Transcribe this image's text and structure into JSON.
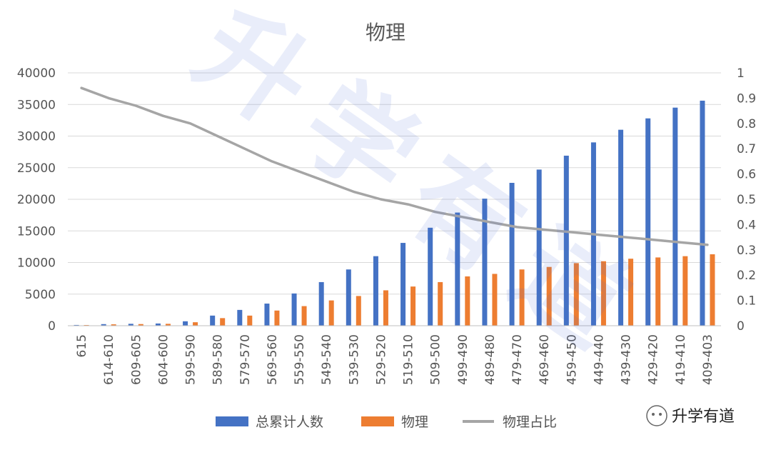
{
  "chart_data": {
    "type": "bar",
    "title": "物理",
    "categories": [
      "615",
      "614-610",
      "609-605",
      "604-600",
      "599-590",
      "589-580",
      "579-570",
      "569-560",
      "559-550",
      "549-540",
      "539-530",
      "529-520",
      "519-510",
      "509-500",
      "499-490",
      "489-480",
      "479-470",
      "469-460",
      "459-450",
      "449-440",
      "439-430",
      "429-420",
      "419-410",
      "409-403"
    ],
    "series": [
      {
        "name": "总累计人数",
        "type": "bar",
        "axis": "left",
        "color": "#4472C4",
        "values": [
          120,
          250,
          300,
          350,
          700,
          1600,
          2500,
          3500,
          5100,
          6900,
          8900,
          11000,
          13100,
          15500,
          17900,
          20100,
          22600,
          24700,
          26900,
          29000,
          31000,
          32800,
          34500,
          35600
        ]
      },
      {
        "name": "物理",
        "type": "bar",
        "axis": "left",
        "color": "#ED7D31",
        "values": [
          110,
          220,
          260,
          300,
          550,
          1200,
          1600,
          2400,
          3100,
          4000,
          4700,
          5600,
          6200,
          6900,
          7800,
          8200,
          8900,
          9300,
          9900,
          10200,
          10600,
          10800,
          11000,
          11300
        ]
      },
      {
        "name": "物理占比",
        "type": "line",
        "axis": "right",
        "color": "#A5A5A5",
        "values": [
          0.94,
          0.9,
          0.87,
          0.83,
          0.8,
          0.75,
          0.7,
          0.65,
          0.61,
          0.57,
          0.53,
          0.5,
          0.48,
          0.45,
          0.43,
          0.41,
          0.39,
          0.38,
          0.37,
          0.36,
          0.35,
          0.34,
          0.33,
          0.32
        ]
      }
    ],
    "y_left": {
      "min": 0,
      "max": 40000,
      "step": 5000,
      "ticks": [
        "0",
        "5000",
        "10000",
        "15000",
        "20000",
        "25000",
        "30000",
        "35000",
        "40000"
      ]
    },
    "y_right": {
      "min": 0,
      "max": 1,
      "step": 0.1,
      "ticks": [
        "0",
        "0.1",
        "0.2",
        "0.3",
        "0.4",
        "0.5",
        "0.6",
        "0.7",
        "0.8",
        "0.9",
        "1"
      ]
    },
    "grid": true,
    "legend_position": "bottom"
  },
  "watermark": {
    "text": "升学有道",
    "color": "#4A6FD8"
  }
}
